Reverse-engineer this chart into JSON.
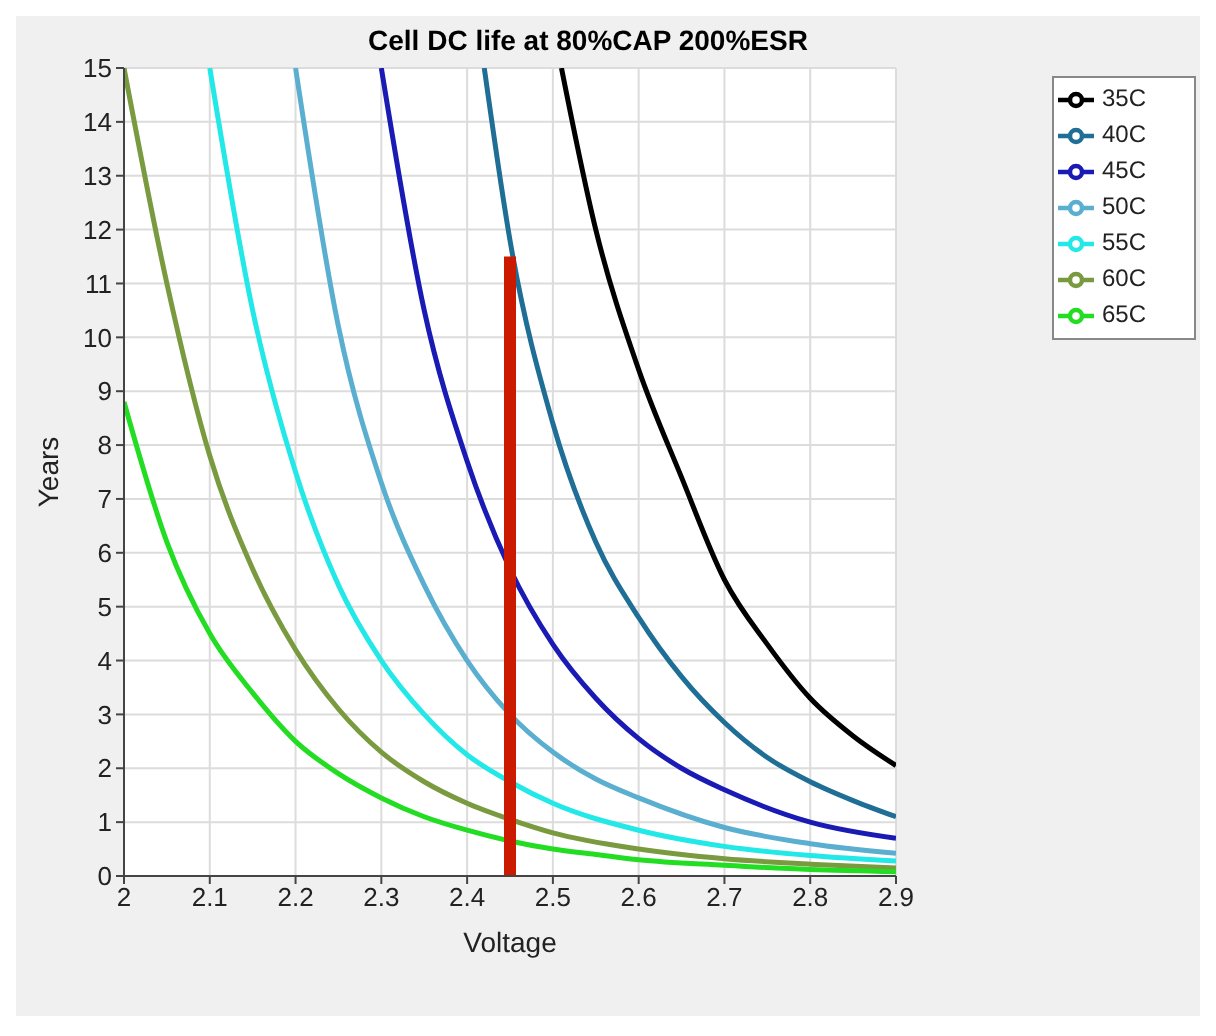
{
  "chart_data": {
    "type": "line",
    "title": "Cell DC life at 80%CAP 200%ESR",
    "xlabel": "Voltage",
    "ylabel": "Years",
    "xlim": [
      2,
      2.9
    ],
    "xticks": [
      2,
      2.1,
      2.2,
      2.3,
      2.4,
      2.5,
      2.6,
      2.7,
      2.8,
      2.9
    ],
    "ylim": [
      0,
      15
    ],
    "yticks": [
      0,
      1,
      2,
      3,
      4,
      5,
      6,
      7,
      8,
      9,
      10,
      11,
      12,
      13,
      14,
      15
    ],
    "grid": true,
    "legend": "top right",
    "marker": "none",
    "line_style": "solid",
    "series": [
      {
        "name": "35C",
        "color": "#000000",
        "x": [
          2.51,
          2.55,
          2.6,
          2.65,
          2.7,
          2.75,
          2.8,
          2.85,
          2.9
        ],
        "values": [
          15,
          12,
          9.4,
          7.4,
          5.5,
          4.3,
          3.3,
          2.6,
          2.05
        ]
      },
      {
        "name": "40C",
        "color": "#1f6e96",
        "x": [
          2.42,
          2.45,
          2.5,
          2.55,
          2.6,
          2.65,
          2.7,
          2.75,
          2.8,
          2.85,
          2.9
        ],
        "values": [
          15,
          11.8,
          8.4,
          6.2,
          4.8,
          3.7,
          2.85,
          2.2,
          1.75,
          1.4,
          1.1
        ]
      },
      {
        "name": "45C",
        "color": "#1a1ab4",
        "x": [
          2.3,
          2.35,
          2.4,
          2.45,
          2.5,
          2.55,
          2.6,
          2.65,
          2.7,
          2.8,
          2.9
        ],
        "values": [
          15,
          10.5,
          7.7,
          5.7,
          4.3,
          3.3,
          2.55,
          2,
          1.6,
          1,
          0.7
        ]
      },
      {
        "name": "50C",
        "color": "#5aaed0",
        "x": [
          2.2,
          2.25,
          2.3,
          2.35,
          2.4,
          2.45,
          2.5,
          2.55,
          2.6,
          2.7,
          2.8,
          2.9
        ],
        "values": [
          15,
          10.2,
          7.3,
          5.4,
          4,
          3,
          2.3,
          1.8,
          1.45,
          0.9,
          0.6,
          0.42
        ]
      },
      {
        "name": "55C",
        "color": "#22e8e8",
        "x": [
          2.1,
          2.15,
          2.2,
          2.25,
          2.3,
          2.35,
          2.4,
          2.45,
          2.5,
          2.6,
          2.7,
          2.8,
          2.9
        ],
        "values": [
          15,
          10.5,
          7.5,
          5.4,
          4,
          3,
          2.25,
          1.75,
          1.35,
          0.85,
          0.55,
          0.38,
          0.28
        ]
      },
      {
        "name": "60C",
        "color": "#7a9a40",
        "x": [
          2,
          2.05,
          2.1,
          2.15,
          2.2,
          2.25,
          2.3,
          2.35,
          2.4,
          2.45,
          2.5,
          2.6,
          2.7,
          2.8,
          2.9
        ],
        "values": [
          15,
          11,
          7.8,
          5.7,
          4.2,
          3.1,
          2.3,
          1.75,
          1.35,
          1.05,
          0.8,
          0.5,
          0.32,
          0.22,
          0.15
        ]
      },
      {
        "name": "65C",
        "color": "#22dd22",
        "x": [
          2,
          2.05,
          2.1,
          2.15,
          2.2,
          2.25,
          2.3,
          2.35,
          2.4,
          2.45,
          2.5,
          2.55,
          2.6,
          2.7,
          2.8,
          2.9
        ],
        "values": [
          8.8,
          6.2,
          4.5,
          3.4,
          2.5,
          1.9,
          1.45,
          1.1,
          0.85,
          0.65,
          0.5,
          0.4,
          0.3,
          0.2,
          0.12,
          0.08
        ]
      },
      {
        "color": "#cc1a00",
        "x": [
          2.45,
          2.45
        ],
        "values": [
          0,
          11.5
        ]
      }
    ]
  }
}
